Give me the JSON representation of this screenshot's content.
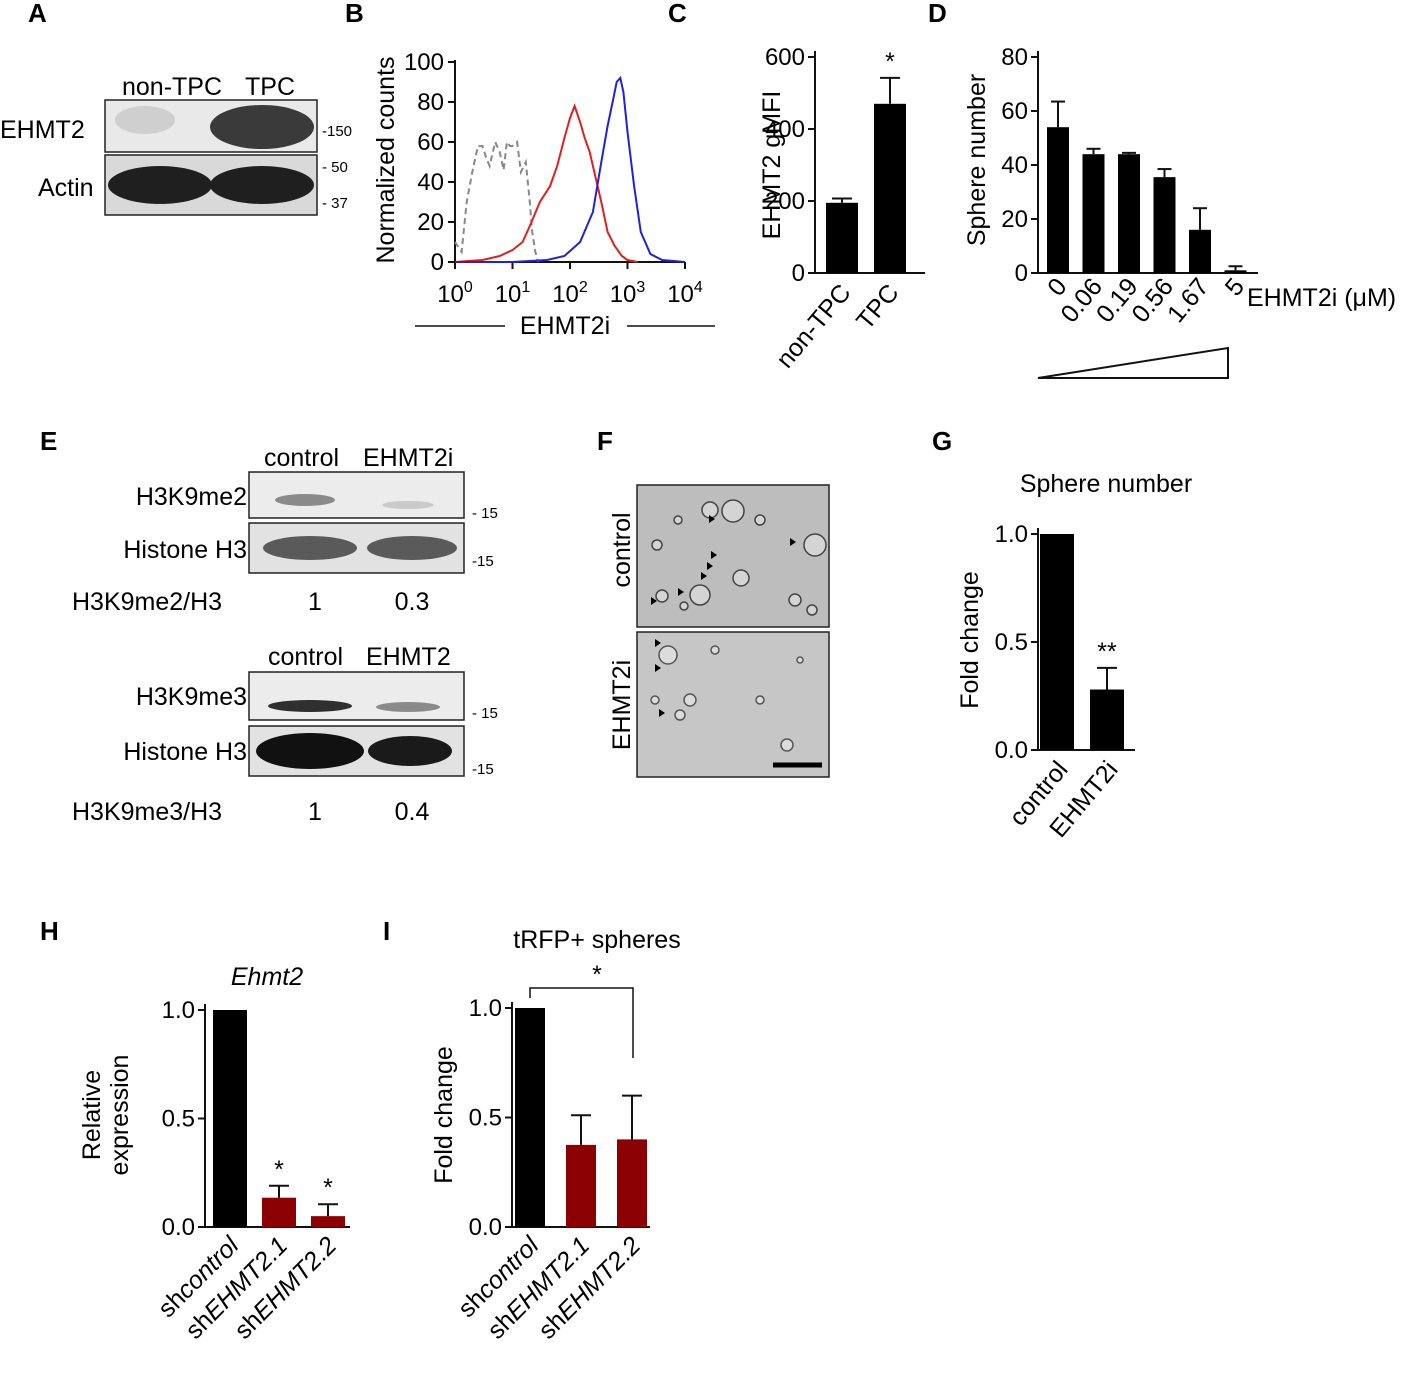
{
  "panels": {
    "A": {
      "letter": "A",
      "lanes": [
        "non-TPC",
        "TPC"
      ],
      "rows": [
        "EHMT2",
        "Actin"
      ],
      "markers": [
        "150",
        "50",
        "37"
      ]
    },
    "B": {
      "letter": "B",
      "ylabel": "Normalized counts",
      "xlabel": "EHMT2i",
      "yticks": [
        "0",
        "20",
        "40",
        "60",
        "80",
        "100"
      ],
      "xticks": [
        "10^0",
        "10^1",
        "10^2",
        "10^3",
        "10^4"
      ],
      "colors": {
        "control": "#888888",
        "nonTPC": "#e02020",
        "TPC": "#2020dd"
      }
    },
    "C": {
      "letter": "C",
      "ylabel": "EHMT2 gMFI",
      "yticks": [
        "0",
        "200",
        "400",
        "600"
      ],
      "sig": "*"
    },
    "D": {
      "letter": "D",
      "ylabel": "Sphere number",
      "yticks": [
        "0",
        "20",
        "40",
        "60",
        "80"
      ],
      "xunit": "EHMT2i (μM)"
    },
    "E": {
      "letter": "E",
      "blot1": {
        "lanes": [
          "control",
          "EHMT2i"
        ],
        "rows": [
          "H3K9me2",
          "Histone H3"
        ],
        "marker": "15",
        "ratio_label": "H3K9me2/H3",
        "ratios": [
          "1",
          "0.3"
        ]
      },
      "blot2": {
        "lanes": [
          "control",
          "EHMT2"
        ],
        "rows": [
          "H3K9me3",
          "Histone H3"
        ],
        "marker": "15",
        "ratio_label": "H3K9me3/H3",
        "ratios": [
          "1",
          "0.4"
        ]
      }
    },
    "F": {
      "letter": "F",
      "rows": [
        "control",
        "EHMT2i"
      ]
    },
    "G": {
      "letter": "G",
      "title": "Sphere number",
      "ylabel": "Fold change",
      "yticks": [
        "0.0",
        "0.5",
        "1.0"
      ],
      "sig": "**"
    },
    "H": {
      "letter": "H",
      "title": "Ehmt2",
      "ylabel1": "Relative",
      "ylabel2": "expression",
      "yticks": [
        "0.0",
        "0.5",
        "1.0"
      ],
      "sig": "*"
    },
    "I": {
      "letter": "I",
      "title": "tRFP+ spheres",
      "ylabel": "Fold change",
      "yticks": [
        "0.0",
        "0.5",
        "1.0"
      ],
      "sig": "*"
    }
  },
  "chart_data": [
    {
      "panel": "B",
      "type": "line",
      "xscale": "log",
      "xlim": [
        1,
        10000
      ],
      "ylim": [
        0,
        100
      ],
      "ylabel": "Normalized counts",
      "xlabel": "EHMT2i",
      "series": [
        {
          "x": [
            1,
            1.3,
            1.6,
            2,
            2.5,
            3,
            3.5,
            4,
            5,
            6,
            7,
            8,
            9,
            10,
            12,
            14,
            17,
            20,
            22,
            25,
            28
          ],
          "values": [
            10,
            5,
            30,
            45,
            58,
            58,
            52,
            48,
            60,
            55,
            46,
            60,
            58,
            58,
            60,
            45,
            50,
            30,
            15,
            5,
            0
          ]
        },
        {
          "x": [
            1,
            3,
            6,
            10,
            15,
            20,
            30,
            45,
            60,
            80,
            100,
            120,
            150,
            180,
            220,
            280,
            350,
            450,
            600,
            800,
            1000,
            1500
          ],
          "values": [
            0,
            1,
            3,
            6,
            10,
            18,
            30,
            38,
            48,
            62,
            72,
            78,
            70,
            62,
            55,
            42,
            30,
            15,
            8,
            3,
            1,
            0
          ]
        },
        {
          "x": [
            1,
            10,
            40,
            80,
            150,
            250,
            350,
            450,
            550,
            650,
            750,
            850,
            1000,
            1300,
            1700,
            2500,
            4000,
            10000
          ],
          "values": [
            0,
            0,
            1,
            3,
            10,
            25,
            50,
            68,
            80,
            90,
            92,
            85,
            65,
            38,
            15,
            4,
            1,
            0
          ]
        }
      ]
    },
    {
      "panel": "C",
      "type": "bar",
      "ylabel": "EHMT2 gMFI",
      "ylim": [
        0,
        600
      ],
      "categories": [
        "non-TPC",
        "TPC"
      ],
      "values": [
        195,
        470
      ],
      "errors": [
        12,
        72
      ]
    },
    {
      "panel": "D",
      "type": "bar",
      "ylabel": "Sphere number",
      "ylim": [
        0,
        80
      ],
      "categories": [
        "0",
        "0.06",
        "0.19",
        "0.56",
        "1.67",
        "5"
      ],
      "values": [
        54,
        44,
        44,
        35.5,
        16,
        1
      ],
      "errors": [
        9.5,
        2,
        0.5,
        3,
        8,
        1.5
      ]
    },
    {
      "panel": "G",
      "type": "bar",
      "title": "Sphere number",
      "ylabel": "Fold change",
      "ylim": [
        0,
        1.0
      ],
      "categories": [
        "control",
        "EHMT2i"
      ],
      "values": [
        1.0,
        0.28
      ],
      "errors": [
        0,
        0.1
      ]
    },
    {
      "panel": "H",
      "type": "bar",
      "title": "Ehmt2",
      "ylabel": "Relative expression",
      "ylim": [
        0,
        1.0
      ],
      "categories": [
        "shcontrol",
        "shEHMT2.1",
        "shEHMT2.2"
      ],
      "values": [
        1.0,
        0.135,
        0.05
      ],
      "errors": [
        0,
        0.055,
        0.055
      ]
    },
    {
      "panel": "I",
      "type": "bar",
      "title": "tRFP+ spheres",
      "ylabel": "Fold change",
      "ylim": [
        0,
        1.0
      ],
      "categories": [
        "shcontrol",
        "shEHMT2.1",
        "shEHMT2.2"
      ],
      "values": [
        1.0,
        0.375,
        0.4
      ],
      "errors": [
        0,
        0.135,
        0.2
      ]
    }
  ]
}
